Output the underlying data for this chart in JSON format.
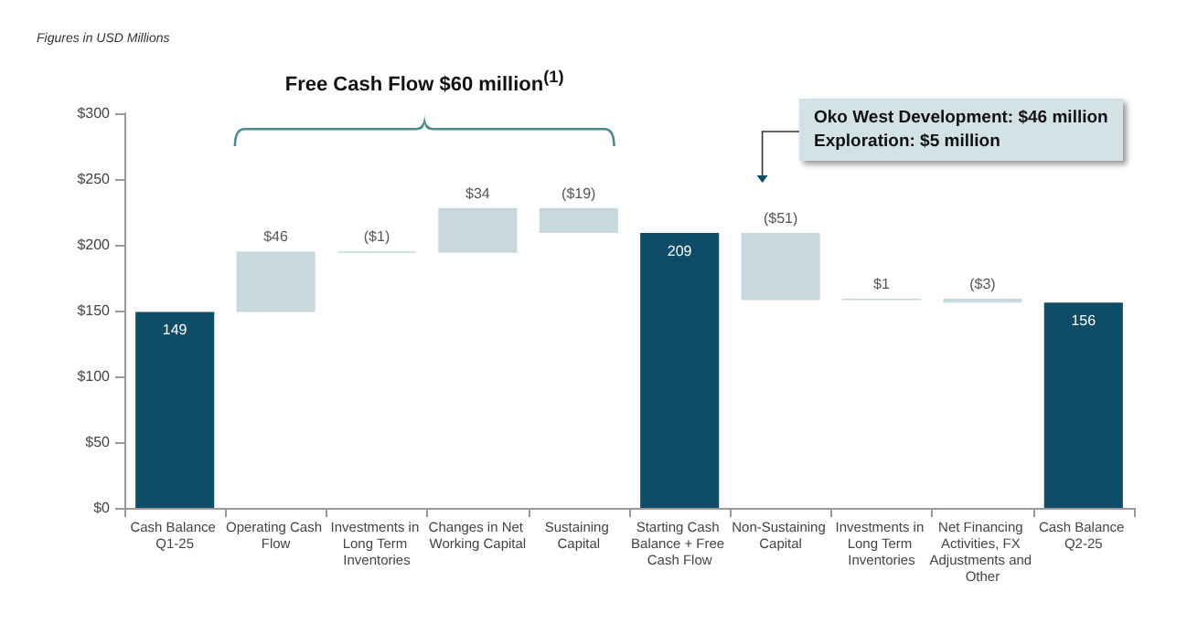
{
  "chart_data": {
    "type": "bar",
    "categories": [
      "Cash Balance Q1-25",
      "Operating Cash Flow",
      "Investments in Long Term Inventories",
      "Changes in Net Working Capital",
      "Sustaining Capital",
      "Starting Cash Balance + Free Cash Flow",
      "Non-Sustaining Capital",
      "Investments in Long Term Inventories",
      "Net Financing Activities, FX Adjustments and Other",
      "Cash Balance Q2-25"
    ],
    "values": [
      149,
      46,
      -1,
      34,
      -19,
      209,
      -51,
      1,
      -3,
      156
    ],
    "base": [
      0,
      149,
      195,
      194,
      228,
      0,
      209,
      158,
      159,
      0
    ],
    "colors": [
      "#0f4c68",
      "#c7d9dc",
      "#c7d9dc",
      "#c7d9dc",
      "#c7d9dc",
      "#0f4c68",
      "#c7d9dc",
      "#c7d9dc",
      "#c7d9dc",
      "#0f4c68"
    ],
    "value_labels": [
      "149",
      "$46",
      "($1)",
      "$34",
      "($19)",
      "209",
      "($51)",
      "$1",
      "($3)",
      "156"
    ],
    "ylim": [
      0,
      300
    ],
    "yticks": [
      {
        "value": 0,
        "label": "$0"
      },
      {
        "value": 50,
        "label": "$50"
      },
      {
        "value": 100,
        "label": "$100"
      },
      {
        "value": 150,
        "label": "$150"
      },
      {
        "value": 200,
        "label": "$200"
      },
      {
        "value": 250,
        "label": "$250"
      },
      {
        "value": 300,
        "label": "$300"
      }
    ],
    "grid": false,
    "annotations": [
      "Figures in USD Millions",
      "Free Cash Flow $60 million$^{(1)}$",
      "Oko West Development: $46 million\nExploration: $5 million"
    ]
  }
}
